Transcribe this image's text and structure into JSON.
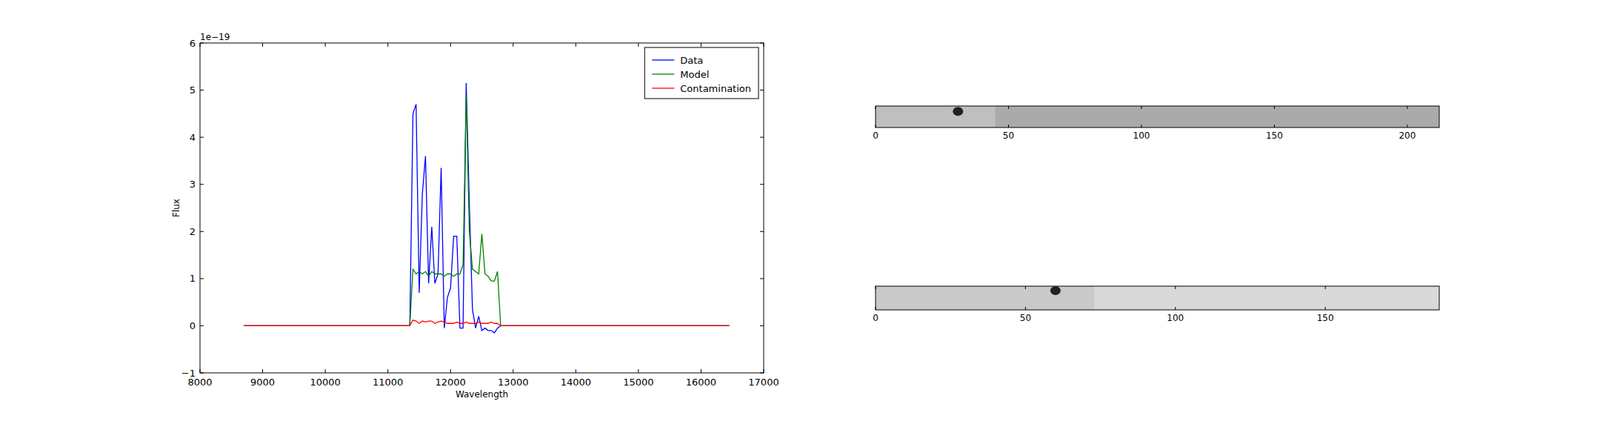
{
  "chart_data": [
    {
      "type": "line",
      "x_label": "Wavelength",
      "y_label": "Flux",
      "annotation": "1e−19",
      "x": [
        8700,
        11350,
        11400,
        11450,
        11500,
        11550,
        11600,
        11650,
        11700,
        11750,
        11800,
        11850,
        11900,
        11950,
        12000,
        12050,
        12100,
        12150,
        12200,
        12250,
        12300,
        12350,
        12400,
        12450,
        12500,
        12550,
        12600,
        12650,
        12700,
        12750,
        12800,
        12850,
        16450
      ],
      "series": [
        {
          "name": "Data",
          "color": "#0000ff",
          "values": [
            0,
            0,
            4.5,
            4.7,
            0.7,
            2.8,
            3.6,
            0.9,
            2.1,
            0.9,
            1.1,
            3.35,
            -0.05,
            0.6,
            0.8,
            1.9,
            1.9,
            -0.05,
            -0.05,
            5.15,
            2.6,
            0.35,
            -0.05,
            0.2,
            -0.1,
            -0.05,
            -0.1,
            -0.1,
            -0.15,
            -0.05,
            0,
            0,
            0
          ]
        },
        {
          "name": "Model",
          "color": "#008000",
          "values": [
            0,
            0,
            1.2,
            1.1,
            1.15,
            1.1,
            1.15,
            1.05,
            1.15,
            1.1,
            1.1,
            1.1,
            1.05,
            1.1,
            1.1,
            1.05,
            1.1,
            1.1,
            1.3,
            4.9,
            2.0,
            1.2,
            1.15,
            1.1,
            1.95,
            1.1,
            1.05,
            0.95,
            0.95,
            1.15,
            0,
            0,
            0
          ]
        },
        {
          "name": "Contamination",
          "color": "#ff0000",
          "values": [
            0,
            0,
            0.12,
            0.1,
            0.05,
            0.1,
            0.08,
            0.1,
            0.1,
            0.05,
            0.08,
            0.1,
            0.08,
            0.05,
            0.05,
            0.05,
            0.08,
            0.05,
            0.05,
            0.08,
            0.05,
            0.05,
            0.05,
            0.08,
            0.05,
            0.05,
            0.05,
            0.08,
            0.05,
            0.05,
            0,
            0,
            0
          ]
        }
      ],
      "xlim": [
        8000,
        17000
      ],
      "xticks": [
        8000,
        9000,
        10000,
        11000,
        12000,
        13000,
        14000,
        15000,
        16000,
        17000
      ],
      "ylim": [
        -1,
        6
      ],
      "yticks": [
        -1,
        0,
        1,
        2,
        3,
        4,
        5,
        6
      ],
      "legend": "upper right",
      "grid": false
    },
    {
      "type": "image",
      "color": "#aaaaaa",
      "tick_labels": "x",
      "xlim": [
        0,
        212
      ],
      "xticks": [
        0,
        50,
        100,
        150,
        200
      ],
      "ylim": [
        0,
        8
      ],
      "coverage": [
        0,
        45
      ],
      "spots": [
        {
          "x": 31,
          "y": 2
        }
      ]
    },
    {
      "type": "image",
      "color": "#d9d9d9",
      "tick_labels": "x",
      "xlim": [
        0,
        188
      ],
      "xticks": [
        0,
        50,
        100,
        150
      ],
      "ylim": [
        0,
        8
      ],
      "coverage": [
        0,
        73
      ],
      "spots": [
        {
          "x": 60,
          "y": 1.5
        }
      ]
    }
  ]
}
